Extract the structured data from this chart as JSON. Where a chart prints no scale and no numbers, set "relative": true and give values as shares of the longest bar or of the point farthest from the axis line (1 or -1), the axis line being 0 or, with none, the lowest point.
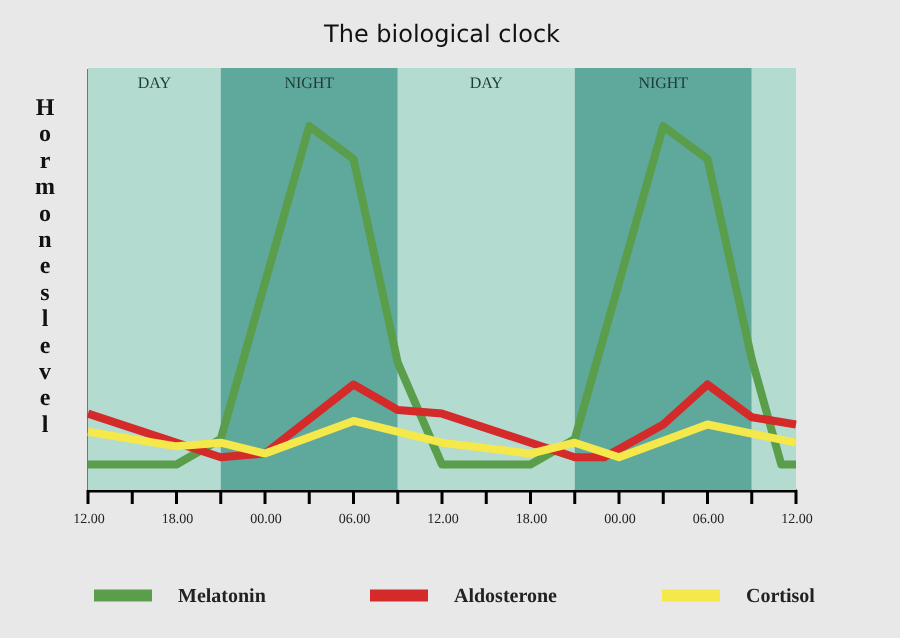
{
  "chart_data": {
    "type": "line",
    "title": "The biological clock",
    "ylabel": "Hormones level",
    "relative": true,
    "xlim": [
      "2000-01-01T12:00",
      "2000-01-03T12:00"
    ],
    "xticks": [
      {
        "value": "2000-01-01T12:00",
        "label": "12.00"
      },
      {
        "value": "2000-01-01T15:00",
        "label": null
      },
      {
        "value": "2000-01-01T18:00",
        "label": "18.00"
      },
      {
        "value": "2000-01-01T21:00",
        "label": null
      },
      {
        "value": "2000-01-02T00:00",
        "label": "00.00"
      },
      {
        "value": "2000-01-02T03:00",
        "label": null
      },
      {
        "value": "2000-01-02T06:00",
        "label": "06.00"
      },
      {
        "value": "2000-01-02T09:00",
        "label": null
      },
      {
        "value": "2000-01-02T12:00",
        "label": "12.00"
      },
      {
        "value": "2000-01-02T15:00",
        "label": null
      },
      {
        "value": "2000-01-02T18:00",
        "label": "18.00"
      },
      {
        "value": "2000-01-02T21:00",
        "label": null
      },
      {
        "value": "2000-01-03T00:00",
        "label": "00.00"
      },
      {
        "value": "2000-01-03T03:00",
        "label": null
      },
      {
        "value": "2000-01-03T06:00",
        "label": "06.00"
      },
      {
        "value": "2000-01-03T09:00",
        "label": null
      },
      {
        "value": "2000-01-03T12:00",
        "label": "12.00"
      }
    ],
    "series": [
      {
        "name": "Melatonin",
        "color": "#5a9e4b",
        "x": [
          "2000-01-01T12:00",
          "2000-01-01T18:00",
          "2000-01-01T21:00",
          "2000-01-02T03:00",
          "2000-01-02T06:00",
          "2000-01-02T09:00",
          "2000-01-02T12:00",
          "2000-01-02T18:00",
          "2000-01-02T21:00",
          "2000-01-03T03:00",
          "2000-01-03T06:00",
          "2000-01-03T09:00",
          "2000-01-03T11:00",
          "2000-01-03T12:00"
        ],
        "values": [
          0.07,
          0.07,
          0.14,
          1.0,
          0.91,
          0.35,
          0.07,
          0.07,
          0.14,
          1.0,
          0.91,
          0.36,
          0.07,
          0.07
        ]
      },
      {
        "name": "Aldosterone",
        "color": "#d42a2a",
        "x": [
          "2000-01-01T12:00",
          "2000-01-01T21:00",
          "2000-01-02T00:00",
          "2000-01-02T06:00",
          "2000-01-02T09:00",
          "2000-01-02T12:00",
          "2000-01-02T21:00",
          "2000-01-02T23:00",
          "2000-01-03T03:00",
          "2000-01-03T06:00",
          "2000-01-03T09:00",
          "2000-01-03T12:00"
        ],
        "values": [
          0.21,
          0.09,
          0.1,
          0.29,
          0.22,
          0.21,
          0.09,
          0.09,
          0.18,
          0.29,
          0.2,
          0.18
        ]
      },
      {
        "name": "Cortisol",
        "color": "#f5e84a",
        "x": [
          "2000-01-01T12:00",
          "2000-01-01T18:00",
          "2000-01-01T21:00",
          "2000-01-02T00:00",
          "2000-01-02T06:00",
          "2000-01-02T12:00",
          "2000-01-02T18:00",
          "2000-01-02T21:00",
          "2000-01-03T00:00",
          "2000-01-03T06:00",
          "2000-01-03T12:00"
        ],
        "values": [
          0.16,
          0.12,
          0.13,
          0.1,
          0.19,
          0.13,
          0.1,
          0.13,
          0.09,
          0.18,
          0.13
        ]
      }
    ],
    "bands": [
      {
        "axis": "x",
        "from": "2000-01-01T12:00",
        "to": "2000-01-01T21:00",
        "label": "DAY",
        "color": "#b3dbd0"
      },
      {
        "axis": "x",
        "from": "2000-01-01T21:00",
        "to": "2000-01-02T09:00",
        "label": "NIGHT",
        "color": "#5fa89c"
      },
      {
        "axis": "x",
        "from": "2000-01-02T09:00",
        "to": "2000-01-02T21:00",
        "label": "DAY",
        "color": "#b3dbd0"
      },
      {
        "axis": "x",
        "from": "2000-01-02T21:00",
        "to": "2000-01-03T09:00",
        "label": "NIGHT",
        "color": "#5fa89c"
      },
      {
        "axis": "x",
        "from": "2000-01-03T09:00",
        "to": "2000-01-03T12:00",
        "label": null,
        "color": "#b3dbd0"
      }
    ],
    "grid": false,
    "legend": "bottom",
    "marker": "none",
    "line_style": "solid"
  }
}
